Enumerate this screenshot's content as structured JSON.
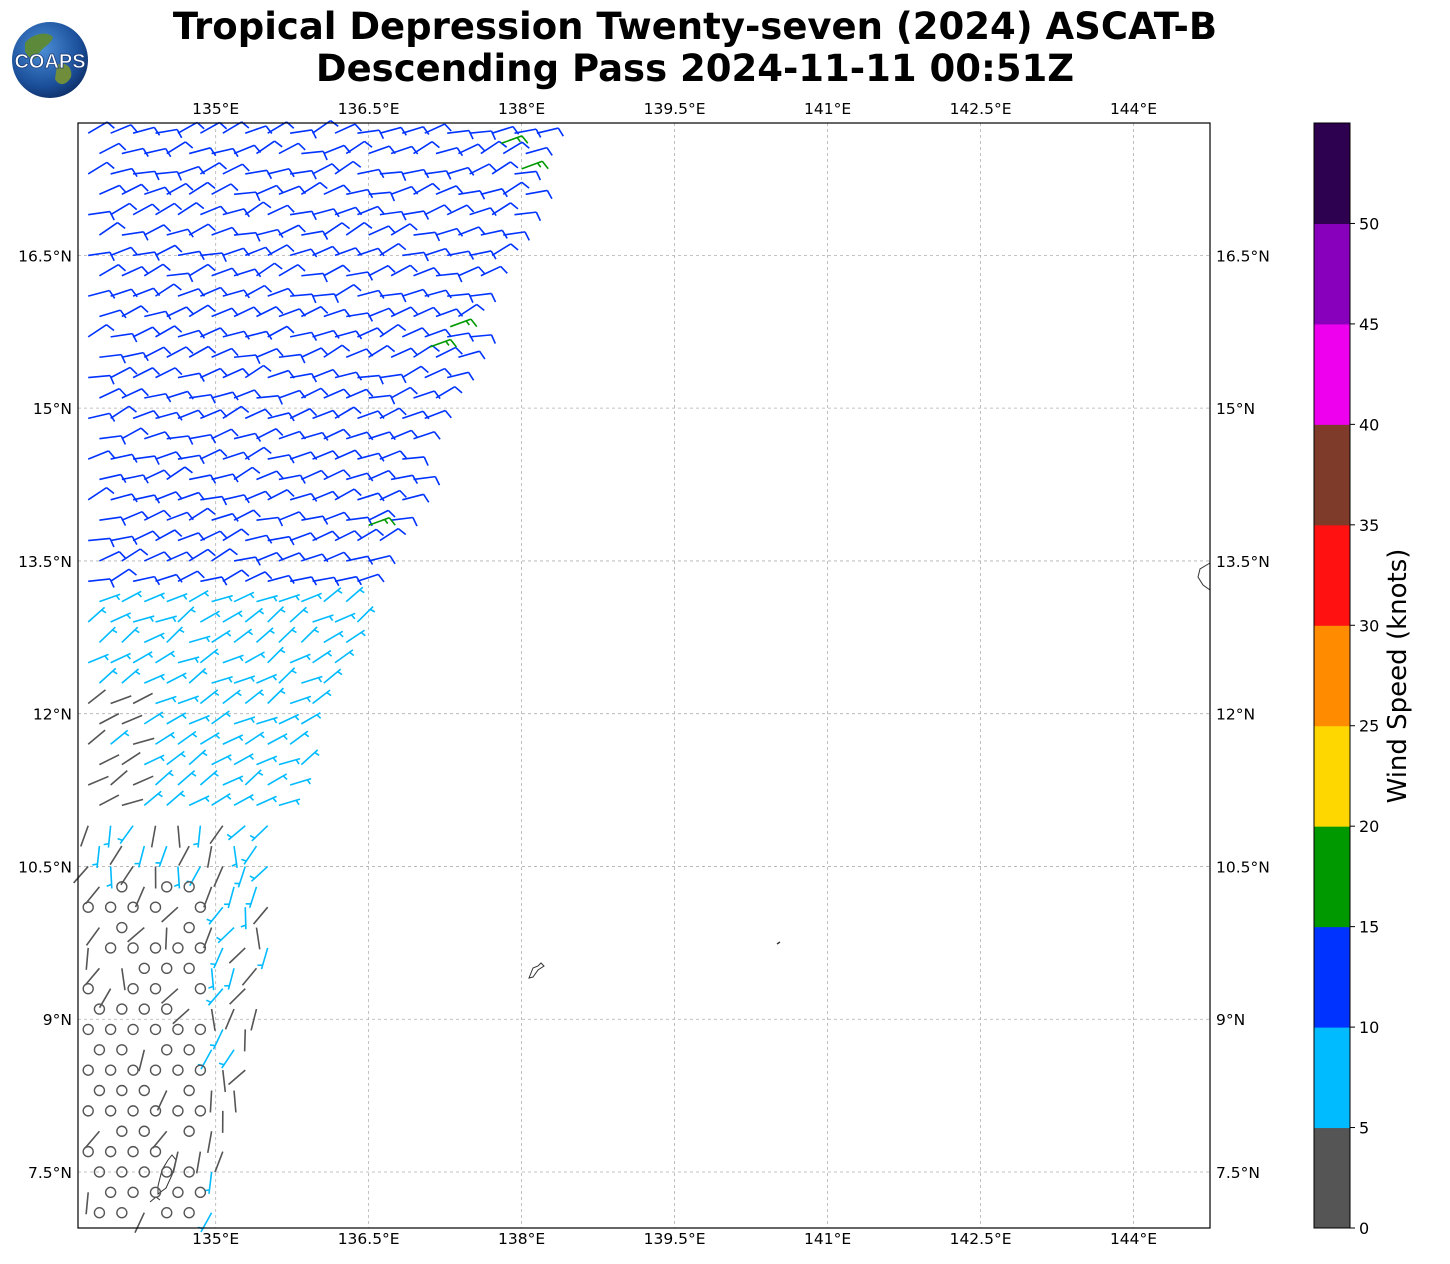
{
  "header": {
    "title_line1": "Tropical Depression Twenty-seven (2024) ASCAT-B",
    "title_line2": "Descending Pass 2024-11-11 00:51Z",
    "logo_text": "COAPS"
  },
  "chart_data": {
    "type": "wind_barb_map",
    "title": "Tropical Depression Twenty-seven (2024) ASCAT-B Descending Pass 2024-11-11 00:51Z",
    "lon_range": [
      133.65,
      144.75
    ],
    "lat_range": [
      6.95,
      17.8
    ],
    "lon_ticks": [
      135,
      136.5,
      138,
      139.5,
      141,
      142.5,
      144
    ],
    "lon_tick_labels": [
      "135°E",
      "136.5°E",
      "138°E",
      "139.5°E",
      "141°E",
      "142.5°E",
      "144°E"
    ],
    "lat_ticks": [
      16.5,
      15,
      13.5,
      12,
      10.5,
      9,
      7.5
    ],
    "lat_tick_labels": [
      "16.5°N",
      "15°N",
      "13.5°N",
      "12°N",
      "10.5°N",
      "9°N",
      "7.5°N"
    ],
    "grid": true,
    "colorbar": {
      "label": "Wind Speed (knots)",
      "bounds": [
        0,
        5,
        10,
        15,
        20,
        25,
        30,
        35,
        40,
        45,
        50,
        55
      ],
      "tick_labels": [
        "0",
        "5",
        "10",
        "15",
        "20",
        "25",
        "30",
        "35",
        "40",
        "45",
        "50"
      ],
      "colors": [
        "#555555",
        "#00bbff",
        "#0033ff",
        "#009900",
        "#ffd700",
        "#ff8c00",
        "#ff1111",
        "#7f3b2a",
        "#ee00ee",
        "#8800bb",
        "#2d0050"
      ]
    },
    "swath": {
      "description_side": "west",
      "regions": [
        {
          "name": "north",
          "lat": [
            13.2,
            17.8
          ],
          "speed_knots": [
            10,
            15
          ],
          "direction_deg": 70
        },
        {
          "name": "middle",
          "lat": [
            11.0,
            13.2
          ],
          "speed_knots": [
            5,
            10
          ],
          "direction_deg": 60
        },
        {
          "name": "south",
          "lat": [
            6.95,
            11.0
          ],
          "speed_knots": [
            0,
            5
          ],
          "direction_deg": 200
        }
      ],
      "green_barbs": [
        {
          "lon": 137.8,
          "lat": 17.6,
          "speed_knots": 16
        },
        {
          "lon": 138.0,
          "lat": 17.35,
          "speed_knots": 16
        },
        {
          "lon": 137.3,
          "lat": 15.8,
          "speed_knots": 16
        },
        {
          "lon": 137.1,
          "lat": 15.6,
          "speed_knots": 16
        },
        {
          "lon": 136.5,
          "lat": 13.85,
          "speed_knots": 16
        }
      ]
    }
  }
}
